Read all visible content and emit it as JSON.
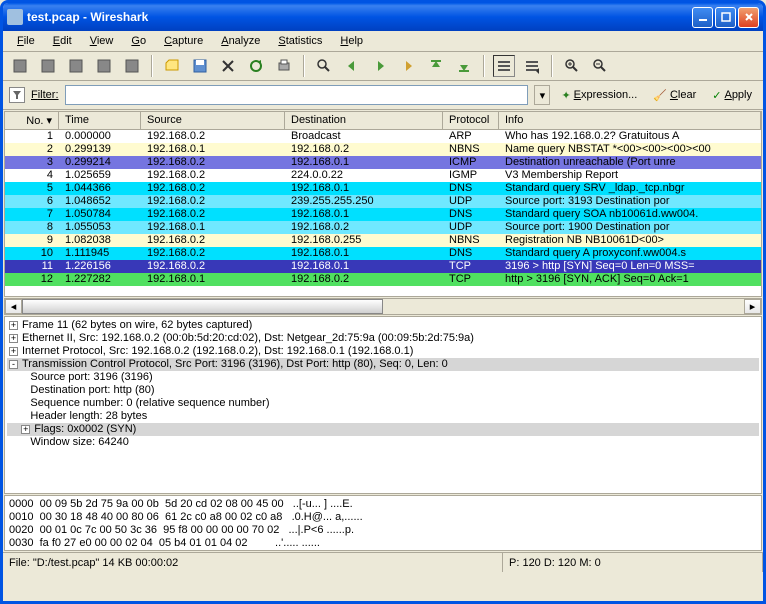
{
  "titlebar": {
    "text": "test.pcap - Wireshark"
  },
  "menu": [
    "File",
    "Edit",
    "View",
    "Go",
    "Capture",
    "Analyze",
    "Statistics",
    "Help"
  ],
  "filterbar": {
    "label": "Filter:",
    "expression": "Expression...",
    "clear": "Clear",
    "apply": "Apply"
  },
  "packet_headers": [
    "No. ▾",
    "Time",
    "Source",
    "Destination",
    "Protocol",
    "Info"
  ],
  "packets": [
    {
      "no": "1",
      "time": "0.000000",
      "src": "192.168.0.2",
      "dst": "Broadcast",
      "proto": "ARP",
      "info": "Who has 192.168.0.2?  Gratuitous A",
      "bg": "#ffffff"
    },
    {
      "no": "2",
      "time": "0.299139",
      "src": "192.168.0.1",
      "dst": "192.168.0.2",
      "proto": "NBNS",
      "info": "Name query NBSTAT *<00><00><00><00",
      "bg": "#fffbd0"
    },
    {
      "no": "3",
      "time": "0.299214",
      "src": "192.168.0.2",
      "dst": "192.168.0.1",
      "proto": "ICMP",
      "info": "Destination unreachable (Port unre",
      "bg": "#7575e0"
    },
    {
      "no": "4",
      "time": "1.025659",
      "src": "192.168.0.2",
      "dst": "224.0.0.22",
      "proto": "IGMP",
      "info": "V3 Membership Report",
      "bg": "#ffffff"
    },
    {
      "no": "5",
      "time": "1.044366",
      "src": "192.168.0.2",
      "dst": "192.168.0.1",
      "proto": "DNS",
      "info": "Standard query SRV _ldap._tcp.nbgr",
      "bg": "#00e0ff"
    },
    {
      "no": "6",
      "time": "1.048652",
      "src": "192.168.0.2",
      "dst": "239.255.255.250",
      "proto": "UDP",
      "info": "Source port: 3193  Destination por",
      "bg": "#70e8ff"
    },
    {
      "no": "7",
      "time": "1.050784",
      "src": "192.168.0.2",
      "dst": "192.168.0.1",
      "proto": "DNS",
      "info": "Standard query SOA nb10061d.ww004.",
      "bg": "#00e0ff"
    },
    {
      "no": "8",
      "time": "1.055053",
      "src": "192.168.0.1",
      "dst": "192.168.0.2",
      "proto": "UDP",
      "info": "Source port: 1900  Destination por",
      "bg": "#70e8ff"
    },
    {
      "no": "9",
      "time": "1.082038",
      "src": "192.168.0.2",
      "dst": "192.168.0.255",
      "proto": "NBNS",
      "info": "Registration NB NB10061D<00>",
      "bg": "#fffbd0"
    },
    {
      "no": "10",
      "time": "1.111945",
      "src": "192.168.0.2",
      "dst": "192.168.0.1",
      "proto": "DNS",
      "info": "Standard query A proxyconf.ww004.s",
      "bg": "#00e0ff"
    },
    {
      "no": "11",
      "time": "1.226156",
      "src": "192.168.0.2",
      "dst": "192.168.0.1",
      "proto": "TCP",
      "info": "3196 > http [SYN] Seq=0 Len=0 MSS=",
      "bg": "selected"
    },
    {
      "no": "12",
      "time": "1.227282",
      "src": "192.168.0.1",
      "dst": "192.168.0.2",
      "proto": "TCP",
      "info": "http > 3196 [SYN, ACK] Seq=0 Ack=1",
      "bg": "#50e060"
    }
  ],
  "detail": [
    {
      "ind": 0,
      "box": "+",
      "text": "Frame 11 (62 bytes on wire, 62 bytes captured)",
      "hl": false
    },
    {
      "ind": 0,
      "box": "+",
      "text": "Ethernet II, Src: 192.168.0.2 (00:0b:5d:20:cd:02), Dst: Netgear_2d:75:9a (00:09:5b:2d:75:9a)",
      "hl": false
    },
    {
      "ind": 0,
      "box": "+",
      "text": "Internet Protocol, Src: 192.168.0.2 (192.168.0.2), Dst: 192.168.0.1 (192.168.0.1)",
      "hl": false
    },
    {
      "ind": 0,
      "box": "-",
      "text": "Transmission Control Protocol, Src Port: 3196 (3196), Dst Port: http (80), Seq: 0, Len: 0",
      "hl": true
    },
    {
      "ind": 1,
      "box": "",
      "text": "Source port: 3196 (3196)",
      "hl": false
    },
    {
      "ind": 1,
      "box": "",
      "text": "Destination port: http (80)",
      "hl": false
    },
    {
      "ind": 1,
      "box": "",
      "text": "Sequence number: 0    (relative sequence number)",
      "hl": false
    },
    {
      "ind": 1,
      "box": "",
      "text": "Header length: 28 bytes",
      "hl": false
    },
    {
      "ind": 1,
      "box": "+",
      "text": "Flags: 0x0002 (SYN)",
      "hl": true
    },
    {
      "ind": 1,
      "box": "",
      "text": "Window size: 64240",
      "hl": false
    }
  ],
  "hex": [
    "0000  00 09 5b 2d 75 9a 00 0b  5d 20 cd 02 08 00 45 00   ..[-u... ] ....E.",
    "0010  00 30 18 48 40 00 80 06  61 2c c0 a8 00 02 c0 a8   .0.H@... a,......",
    "0020  00 01 0c 7c 00 50 3c 36  95 f8 00 00 00 00 70 02   ...|.P<6 ......p.",
    "0030  fa f0 27 e0 00 00 02 04  05 b4 01 01 04 02         ..'..... ......  "
  ],
  "statusbar": {
    "file": "File: \"D:/test.pcap\" 14 KB 00:00:02",
    "packets": "P: 120 D: 120 M: 0"
  }
}
